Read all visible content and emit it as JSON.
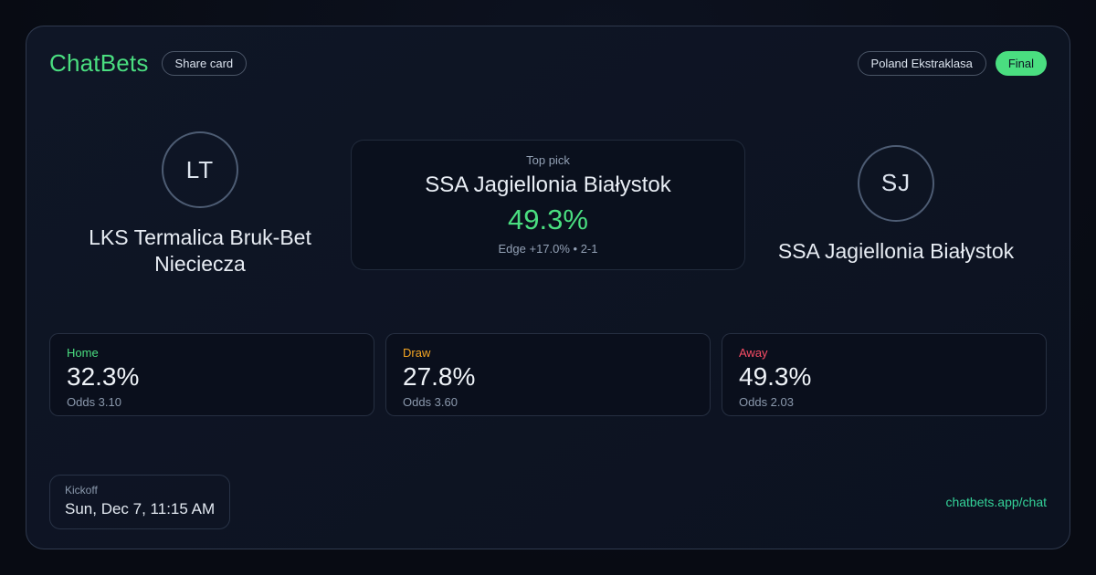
{
  "colors": {
    "brand_green": "#4ade80",
    "final_badge_bg": "#4ade80",
    "final_badge_text": "#0c1322",
    "top_pick_green": "#4ade80",
    "home_label": "#4ade80",
    "draw_label": "#f5a623",
    "away_label": "#fb4d66",
    "link_green": "#34d399"
  },
  "header": {
    "brand": "ChatBets",
    "share_label": "Share card",
    "league_label": "Poland Ekstraklasa",
    "status_label": "Final"
  },
  "teams": {
    "home": {
      "initials": "LT",
      "name": "LKS Termalica Bruk-Bet Nieciecza"
    },
    "away": {
      "initials": "SJ",
      "name": "SSA Jagiellonia Białystok"
    }
  },
  "top_pick": {
    "label": "Top pick",
    "team": "SSA Jagiellonia Białystok",
    "probability": "49.3%",
    "detail": "Edge +17.0% • 2-1"
  },
  "markets": [
    {
      "label": "Home",
      "probability": "32.3%",
      "odds": "Odds 3.10",
      "color": "#4ade80"
    },
    {
      "label": "Draw",
      "probability": "27.8%",
      "odds": "Odds 3.60",
      "color": "#f5a623"
    },
    {
      "label": "Away",
      "probability": "49.3%",
      "odds": "Odds 2.03",
      "color": "#fb4d66"
    }
  ],
  "kickoff": {
    "label": "Kickoff",
    "value": "Sun, Dec 7, 11:15 AM"
  },
  "footer": {
    "link_label": "chatbets.app/chat"
  }
}
